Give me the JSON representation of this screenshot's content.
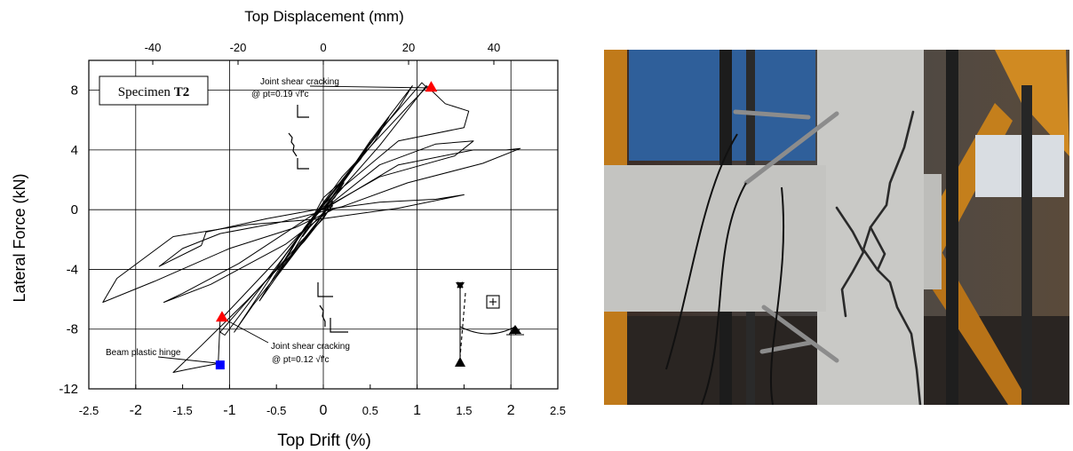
{
  "figure": {
    "x_top_label": "Top Displacement (mm)",
    "x_label": "Top Drift (%)",
    "y_label": "Lateral Force (kN)",
    "specimen_prefix": "Specimen ",
    "specimen_id": "T2"
  },
  "annotations": {
    "crack_pos_line1": "Joint shear cracking",
    "crack_pos_line2": "@ pt=0.19 √f'c",
    "crack_neg_line1": "Joint shear cracking",
    "crack_neg_line2": "@ pt=0.12 √f'c",
    "hinge": "Beam plastic hinge"
  },
  "photo": {
    "description": "Photograph of tested beam-column joint specimen with diagonal shear cracks and displacement transducers"
  },
  "chart_data": {
    "type": "line",
    "xlabel": "Top Drift (%)",
    "ylabel": "Lateral Force (kN)",
    "x2label": "Top Displacement (mm)",
    "xlim": [
      -2.5,
      2.5
    ],
    "ylim": [
      -12,
      10
    ],
    "x2lim": [
      -55,
      55
    ],
    "x_ticks": [
      -2.5,
      -2,
      -1.5,
      -1,
      -0.5,
      0,
      0.5,
      1,
      1.5,
      2,
      2.5
    ],
    "x_tick_labels": [
      "-2.5",
      "-2",
      "-1.5",
      "-1",
      "-0.5",
      "0",
      "0.5",
      "1",
      "1.5",
      "2",
      "2.5"
    ],
    "y_ticks": [
      -12,
      -8,
      -4,
      0,
      4,
      8
    ],
    "y_tick_labels": [
      "-12",
      "-8",
      "-4",
      "0",
      "4",
      "8"
    ],
    "x2_ticks": [
      -40,
      -20,
      0,
      20,
      40
    ],
    "x2_tick_labels": [
      "-40",
      "-20",
      "0",
      "20",
      "40"
    ],
    "grid": true,
    "loops": [
      [
        [
          0,
          0
        ],
        [
          0.12,
          0.8
        ],
        [
          0.22,
          1.8
        ],
        [
          0.15,
          1.2
        ],
        [
          0,
          0.3
        ],
        [
          -0.12,
          -0.8
        ],
        [
          -0.22,
          -1.8
        ],
        [
          -0.15,
          -1.2
        ],
        [
          0,
          -0.2
        ],
        [
          0.08,
          0.3
        ]
      ],
      [
        [
          0,
          0
        ],
        [
          0.2,
          1.8
        ],
        [
          0.35,
          3.2
        ],
        [
          0.25,
          2.2
        ],
        [
          0,
          0.8
        ],
        [
          -0.2,
          -1.5
        ],
        [
          -0.35,
          -3.1
        ],
        [
          -0.25,
          -2.2
        ],
        [
          0,
          -0.6
        ],
        [
          0.1,
          0.4
        ]
      ],
      [
        [
          0,
          0
        ],
        [
          0.3,
          2.6
        ],
        [
          0.5,
          4.5
        ],
        [
          0.4,
          3.4
        ],
        [
          0.1,
          1.2
        ],
        [
          -0.2,
          -1.2
        ],
        [
          -0.5,
          -4.4
        ],
        [
          -0.4,
          -3.5
        ],
        [
          -0.1,
          -1.2
        ],
        [
          0.05,
          0.3
        ]
      ],
      [
        [
          0,
          0
        ],
        [
          0.4,
          3.6
        ],
        [
          0.7,
          6.2
        ],
        [
          0.55,
          4.6
        ],
        [
          0.15,
          1.5
        ],
        [
          -0.3,
          -2.2
        ],
        [
          -0.68,
          -6.1
        ],
        [
          -0.5,
          -4.5
        ],
        [
          -0.1,
          -1.2
        ],
        [
          0.08,
          0.4
        ]
      ],
      [
        [
          0,
          0
        ],
        [
          0.5,
          4.6
        ],
        [
          0.95,
          8.3
        ],
        [
          0.8,
          6.8
        ],
        [
          0.2,
          2.0
        ],
        [
          -0.4,
          -3.0
        ],
        [
          -0.95,
          -8.2
        ],
        [
          -0.75,
          -6.4
        ],
        [
          -0.15,
          -1.6
        ],
        [
          0.1,
          0.6
        ]
      ],
      [
        [
          0,
          0
        ],
        [
          0.55,
          4.9
        ],
        [
          1.05,
          8.5
        ],
        [
          1.1,
          8.2
        ],
        [
          0.9,
          6.9
        ],
        [
          0.2,
          2.2
        ],
        [
          -0.45,
          -3.4
        ],
        [
          -1.05,
          -8.4
        ],
        [
          -1.1,
          -8.2
        ],
        [
          -0.85,
          -6.4
        ],
        [
          -0.2,
          -1.9
        ],
        [
          0.1,
          0.5
        ]
      ],
      [
        [
          0,
          0
        ],
        [
          0.6,
          4.3
        ],
        [
          1.1,
          8.3
        ],
        [
          1.3,
          7.1
        ],
        [
          1.55,
          6.6
        ],
        [
          1.5,
          5.5
        ],
        [
          0.8,
          4.6
        ],
        [
          0.15,
          1.2
        ],
        [
          -0.5,
          -3.4
        ],
        [
          -1.1,
          -7.4
        ],
        [
          -1.12,
          -10.3
        ],
        [
          -1.45,
          -10.7
        ],
        [
          -1.6,
          -10.9
        ],
        [
          -1.3,
          -9.1
        ],
        [
          -0.8,
          -6.0
        ],
        [
          -0.2,
          -2.1
        ],
        [
          0.1,
          0.3
        ]
      ],
      [
        [
          0,
          0
        ],
        [
          0.6,
          3.0
        ],
        [
          1.2,
          4.4
        ],
        [
          1.6,
          4.6
        ],
        [
          1.4,
          3.6
        ],
        [
          0.6,
          2.2
        ],
        [
          -0.1,
          -0.3
        ],
        [
          -0.9,
          -3.6
        ],
        [
          -1.5,
          -5.6
        ],
        [
          -1.7,
          -6.2
        ],
        [
          -1.2,
          -5.0
        ],
        [
          -0.4,
          -2.3
        ],
        [
          0.1,
          0.1
        ]
      ],
      [
        [
          0,
          0
        ],
        [
          0.8,
          3.0
        ],
        [
          1.6,
          4.0
        ],
        [
          1.95,
          4.0
        ],
        [
          2.1,
          4.1
        ],
        [
          1.7,
          3.1
        ],
        [
          0.9,
          1.8
        ],
        [
          0.2,
          0.2
        ],
        [
          -0.5,
          -0.9
        ],
        [
          -1.1,
          -1.6
        ],
        [
          -1.5,
          -2.6
        ],
        [
          -1.75,
          -3.8
        ],
        [
          -1.3,
          -2.4
        ],
        [
          -1.25,
          -1.5
        ],
        [
          -0.6,
          -0.6
        ],
        [
          0.1,
          0.2
        ]
      ],
      [
        [
          0,
          0
        ],
        [
          0.6,
          0.5
        ],
        [
          1.2,
          0.7
        ],
        [
          1.5,
          1.0
        ],
        [
          0.8,
          0.1
        ],
        [
          0,
          -0.6
        ],
        [
          -0.8,
          -1.0
        ],
        [
          -1.6,
          -1.8
        ],
        [
          -2.2,
          -4.6
        ],
        [
          -2.35,
          -6.2
        ],
        [
          -1.8,
          -4.8
        ],
        [
          -1.0,
          -2.6
        ],
        [
          -0.3,
          -1.2
        ],
        [
          0.1,
          0.0
        ]
      ]
    ],
    "markers": [
      {
        "label": "Joint shear cracking @ pt=0.19 √f'c",
        "x": 1.15,
        "y": 8.2,
        "shape": "triangle",
        "color": "#ff0000"
      },
      {
        "label": "Joint shear cracking @ pt=0.12 √f'c",
        "x": -1.08,
        "y": -7.2,
        "shape": "triangle",
        "color": "#ff0000"
      },
      {
        "label": "Beam plastic hinge",
        "x": -1.1,
        "y": -10.4,
        "shape": "square",
        "color": "#0000ff"
      }
    ]
  }
}
